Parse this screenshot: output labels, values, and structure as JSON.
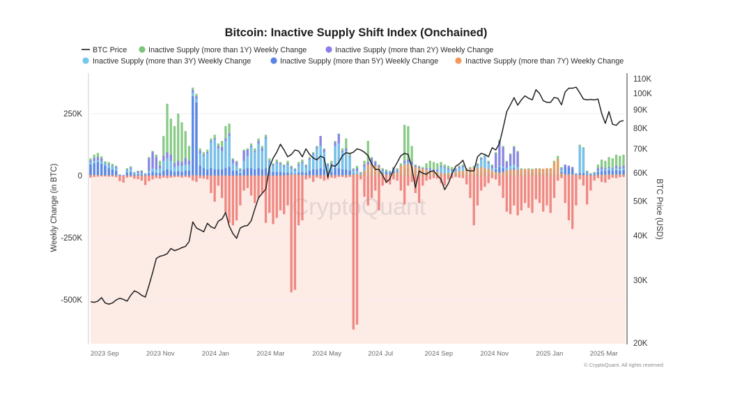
{
  "chart_data": {
    "type": "bar",
    "title": "Bitcoin: Inactive Supply Shift Index (Onchained)",
    "watermark": "CryptoQuant",
    "copyright": "© CryptoQuant. All rights reserved",
    "legend_placement": "top",
    "grid": true,
    "xlabel": "",
    "x_tick_labels": [
      "2023 Sep",
      "2023 Nov",
      "2024 Jan",
      "2024 Mar",
      "2024 May",
      "2024 Jul",
      "2024 Sep",
      "2024 Nov",
      "2025 Jan",
      "2025 Mar"
    ],
    "x_tick_days": [
      0,
      61,
      122,
      182,
      243,
      304,
      366,
      427,
      488,
      547
    ],
    "x_first_day": 0,
    "x_step_days": 4,
    "left_axis": {
      "title": "Weekly Change (in BTC)",
      "tick_values_k": [
        250,
        0,
        -250,
        -500
      ],
      "tick_labels": [
        "250K",
        "0",
        "-250K",
        "-500K"
      ],
      "range_k": [
        -677,
        413
      ]
    },
    "right_axis": {
      "title": "BTC Price (USD)",
      "scale": "log",
      "tick_values_k": [
        110,
        100,
        90,
        80,
        70,
        60,
        50,
        40,
        30,
        20
      ],
      "tick_labels": [
        "110K",
        "100K",
        "90K",
        "80K",
        "70K",
        "60K",
        "50K",
        "40K",
        "30K",
        "20K"
      ],
      "range_k": [
        20,
        110
      ]
    },
    "price": {
      "name": "BTC Price",
      "color": "#1f1f1f",
      "values_k": [
        26.1,
        26.0,
        26.2,
        26.8,
        25.9,
        25.7,
        25.9,
        26.4,
        26.7,
        26.5,
        26.2,
        27.2,
        28.0,
        27.7,
        27.2,
        26.9,
        29.0,
        31.5,
        34.5,
        35.0,
        35.2,
        35.6,
        36.8,
        36.3,
        36.6,
        37.0,
        37.3,
        38.5,
        43.7,
        42.0,
        41.5,
        41.0,
        43.3,
        42.3,
        41.9,
        43.9,
        44.5,
        46.4,
        42.5,
        40.5,
        39.3,
        42.0,
        42.5,
        42.7,
        44.0,
        47.5,
        51.0,
        52.5,
        54.0,
        62.1,
        65.9,
        68.5,
        72.1,
        69.5,
        66.5,
        67.5,
        69.5,
        69.0,
        66.5,
        70.0,
        67.5,
        66.0,
        65.2,
        66.8,
        66.0,
        58.3,
        63.0,
        62.5,
        64.2,
        67.0,
        68.3,
        67.9,
        68.5,
        70.0,
        69.5,
        68.5,
        67.0,
        63.5,
        61.3,
        61.3,
        59.0,
        56.5,
        57.6,
        61.5,
        64.1,
        67.0,
        68.0,
        67.5,
        62.0,
        54.5,
        60.7,
        59.8,
        59.4,
        60.5,
        60.7,
        59.0,
        57.5,
        53.8,
        56.0,
        59.5,
        62.5,
        63.5,
        65.0,
        61.0,
        60.7,
        60.7,
        66.5,
        68.0,
        67.5,
        66.5,
        70.5,
        69.5,
        72.5,
        80.0,
        89.0,
        93.0,
        97.4,
        92.8,
        96.0,
        98.5,
        97.0,
        96.0,
        102.5,
        100.0,
        95.5,
        94.5,
        94.5,
        97.5,
        97.0,
        93.0,
        101.0,
        103.5,
        103.5,
        104.2,
        100.5,
        96.5,
        96.0,
        96.3,
        96.0,
        96.5,
        88.0,
        82.5,
        89.0,
        82.0,
        81.5,
        83.5,
        84.0
      ]
    },
    "series": [
      {
        "name": "Inactive Supply (more than 1Y) Weekly Change",
        "color": "#7cc47a",
        "values_k": [
          70,
          85,
          92,
          78,
          58,
          55,
          48,
          40,
          5,
          3,
          30,
          38,
          15,
          20,
          22,
          10,
          75,
          100,
          85,
          60,
          160,
          290,
          230,
          200,
          250,
          215,
          180,
          120,
          355,
          330,
          110,
          95,
          105,
          150,
          165,
          130,
          140,
          200,
          210,
          70,
          60,
          30,
          105,
          110,
          130,
          110,
          150,
          120,
          165,
          70,
          50,
          65,
          55,
          45,
          60,
          40,
          30,
          55,
          65,
          45,
          75,
          95,
          120,
          160,
          110,
          50,
          60,
          140,
          170,
          110,
          150,
          90,
          30,
          40,
          15,
          60,
          140,
          75,
          60,
          45,
          30,
          25,
          20,
          35,
          30,
          50,
          205,
          200,
          120,
          45,
          40,
          35,
          50,
          60,
          55,
          50,
          55,
          45,
          40,
          35,
          30,
          40,
          45,
          30,
          35,
          40,
          50,
          75,
          85,
          60,
          45,
          95,
          145,
          120,
          60,
          90,
          120,
          100,
          30,
          28,
          30,
          28,
          30,
          30,
          28,
          30,
          30,
          60,
          80,
          35,
          45,
          40,
          35,
          10,
          125,
          115,
          20,
          10,
          15,
          45,
          65,
          60,
          75,
          70,
          85,
          80,
          85
        ]
      },
      {
        "name": "Inactive Supply (more than 2Y) Weekly Change",
        "color": "#8a7eee",
        "values_k": [
          62,
          72,
          75,
          70,
          52,
          45,
          40,
          35,
          4,
          2,
          25,
          32,
          12,
          18,
          18,
          8,
          70,
          95,
          75,
          40,
          80,
          95,
          85,
          50,
          60,
          55,
          70,
          60,
          345,
          320,
          100,
          85,
          95,
          140,
          150,
          120,
          115,
          150,
          170,
          65,
          55,
          25,
          100,
          105,
          120,
          100,
          140,
          110,
          155,
          60,
          45,
          55,
          50,
          40,
          50,
          35,
          25,
          45,
          55,
          40,
          70,
          90,
          115,
          160,
          105,
          45,
          50,
          135,
          168,
          100,
          110,
          80,
          25,
          30,
          12,
          45,
          55,
          70,
          55,
          40,
          25,
          20,
          15,
          30,
          25,
          40,
          60,
          65,
          55,
          40,
          35,
          30,
          30,
          30,
          25,
          25,
          40,
          35,
          30,
          25,
          28,
          35,
          40,
          25,
          30,
          35,
          45,
          70,
          80,
          55,
          40,
          90,
          140,
          115,
          55,
          85,
          115,
          95,
          25,
          25,
          25,
          24,
          25,
          25,
          22,
          25,
          25,
          25,
          30,
          30,
          45,
          40,
          35,
          8,
          120,
          110,
          15,
          8,
          12,
          30,
          35,
          30,
          35,
          30,
          40,
          35,
          40
        ]
      },
      {
        "name": "Inactive Supply (more than 3Y) Weekly Change",
        "color": "#74c8ea",
        "values_k": [
          55,
          60,
          62,
          58,
          50,
          42,
          38,
          30,
          3,
          2,
          22,
          28,
          10,
          12,
          10,
          6,
          20,
          30,
          25,
          30,
          60,
          70,
          60,
          35,
          40,
          40,
          45,
          45,
          335,
          310,
          90,
          80,
          90,
          135,
          145,
          110,
          100,
          140,
          160,
          50,
          40,
          20,
          60,
          80,
          115,
          95,
          130,
          100,
          150,
          55,
          40,
          50,
          45,
          35,
          45,
          30,
          20,
          40,
          50,
          35,
          65,
          85,
          110,
          120,
          95,
          40,
          45,
          120,
          130,
          95,
          100,
          75,
          20,
          20,
          10,
          35,
          40,
          40,
          35,
          30,
          20,
          18,
          12,
          25,
          22,
          30,
          50,
          55,
          45,
          35,
          30,
          25,
          25,
          25,
          20,
          20,
          35,
          30,
          25,
          20,
          22,
          30,
          35,
          20,
          25,
          30,
          40,
          65,
          80,
          50,
          30,
          30,
          40,
          35,
          30,
          40,
          45,
          35,
          20,
          20,
          20,
          18,
          20,
          20,
          18,
          20,
          20,
          20,
          25,
          25,
          30,
          25,
          20,
          6,
          120,
          110,
          10,
          6,
          8,
          20,
          25,
          25,
          30,
          25,
          30,
          28,
          30
        ]
      },
      {
        "name": "Inactive Supply (more than 5Y) Weekly Change",
        "color": "#5b82e6",
        "values_k": [
          45,
          50,
          55,
          48,
          40,
          30,
          25,
          20,
          2,
          1,
          12,
          15,
          5,
          6,
          5,
          3,
          10,
          15,
          12,
          10,
          20,
          25,
          20,
          15,
          18,
          15,
          20,
          20,
          320,
          295,
          40,
          30,
          25,
          30,
          25,
          25,
          25,
          30,
          35,
          20,
          20,
          10,
          25,
          30,
          30,
          25,
          30,
          25,
          30,
          20,
          15,
          15,
          15,
          12,
          12,
          10,
          8,
          12,
          15,
          12,
          20,
          25,
          25,
          30,
          25,
          15,
          15,
          30,
          30,
          25,
          25,
          20,
          8,
          8,
          5,
          15,
          15,
          15,
          15,
          12,
          12,
          15,
          10,
          20,
          18,
          20,
          30,
          30,
          25,
          20,
          20,
          15,
          15,
          15,
          15,
          12,
          10,
          8,
          8,
          6,
          6,
          8,
          10,
          8,
          8,
          10,
          12,
          15,
          15,
          12,
          10,
          25,
          35,
          30,
          20,
          25,
          30,
          25,
          15,
          15,
          15,
          12,
          12,
          12,
          10,
          10,
          10,
          10,
          10,
          15,
          35,
          30,
          25,
          4,
          10,
          10,
          6,
          4,
          5,
          15,
          18,
          20,
          22,
          20,
          22,
          20,
          22
        ]
      },
      {
        "name": "Inactive Supply (more than 7Y) Weekly Change",
        "color": "#f29a5e",
        "values_k": [
          3,
          3,
          3,
          2,
          2,
          2,
          2,
          2,
          0,
          0,
          1,
          1,
          1,
          1,
          1,
          1,
          1,
          1,
          1,
          1,
          1,
          1,
          1,
          1,
          1,
          1,
          1,
          1,
          2,
          2,
          1,
          1,
          1,
          1,
          1,
          1,
          1,
          1,
          1,
          1,
          1,
          1,
          1,
          1,
          1,
          1,
          1,
          1,
          1,
          1,
          1,
          1,
          1,
          2,
          3,
          5,
          6,
          4,
          3,
          2,
          2,
          2,
          2,
          2,
          2,
          2,
          2,
          2,
          2,
          2,
          3,
          3,
          5,
          8,
          5,
          20,
          45,
          45,
          40,
          35,
          10,
          5,
          5,
          10,
          15,
          40,
          45,
          48,
          40,
          35,
          30,
          28,
          25,
          20,
          18,
          15,
          10,
          8,
          12,
          10,
          15,
          18,
          20,
          25,
          30,
          35,
          30,
          35,
          30,
          28,
          20,
          15,
          12,
          15,
          20,
          25,
          25,
          25,
          25,
          28,
          25,
          25,
          28,
          28,
          28,
          30,
          30,
          55,
          68,
          10,
          5,
          5,
          5,
          3,
          3,
          3,
          3,
          2,
          2,
          3,
          4,
          4,
          5,
          5,
          5,
          5,
          5
        ]
      }
    ],
    "negative": {
      "color": "#ec7770",
      "values_k": [
        -8,
        -5,
        -4,
        -3,
        -3,
        -4,
        -4,
        -6,
        -22,
        -28,
        -8,
        -5,
        -12,
        -14,
        -20,
        -38,
        -22,
        -15,
        -10,
        -12,
        -8,
        -10,
        -8,
        -6,
        -5,
        -8,
        -5,
        -8,
        -20,
        -25,
        -10,
        -12,
        -15,
        -70,
        -105,
        -40,
        -90,
        -150,
        -190,
        -200,
        -180,
        -120,
        -60,
        -50,
        -80,
        -110,
        -90,
        -70,
        -190,
        -150,
        -195,
        -170,
        -140,
        -155,
        -120,
        -470,
        -460,
        -200,
        -180,
        -15,
        -10,
        -25,
        -8,
        -12,
        -20,
        -15,
        -8,
        -10,
        -5,
        -5,
        -8,
        -5,
        -620,
        -600,
        -15,
        -85,
        -120,
        -90,
        -60,
        -140,
        -40,
        -30,
        -35,
        -15,
        -20,
        -60,
        -116,
        -40,
        -25,
        -70,
        -110,
        -40,
        -20,
        -15,
        -10,
        -12,
        -30,
        -40,
        -15,
        -10,
        -5,
        -8,
        -10,
        -35,
        -90,
        -200,
        -120,
        -60,
        -45,
        -30,
        -10,
        -15,
        -40,
        -90,
        -145,
        -155,
        -120,
        -160,
        -140,
        -110,
        -130,
        -150,
        -95,
        -110,
        -145,
        -120,
        -150,
        -90,
        -20,
        -10,
        -110,
        -180,
        -215,
        -120,
        -15,
        -40,
        -116,
        -60,
        -20,
        -10,
        -25,
        -28,
        -15,
        -8,
        -10,
        -6,
        -5
      ]
    },
    "negative_area_color": "#fdebe6"
  }
}
